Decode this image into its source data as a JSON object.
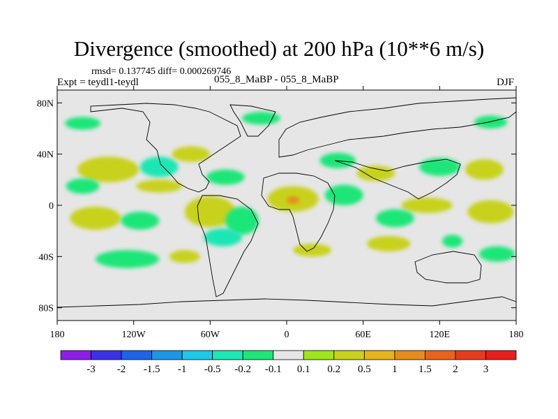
{
  "title": "Divergence (smoothed) at 200 hPa (10**6 m/s)",
  "stats": "rmsd= 0.137745 diff= 0.000269746",
  "experiment": "Expt = teydl1-teydl",
  "case": "055_8_MaBP - 055_8_MaBP",
  "season": "DJF",
  "chart_data": {
    "type": "heatmap",
    "variable": "Divergence (smoothed) at 200 hPa",
    "units": "10**6 m/s",
    "x_axis": {
      "range": [
        -180,
        180
      ],
      "ticks": [
        -180,
        -120,
        -60,
        0,
        60,
        120,
        180
      ],
      "tick_labels": [
        "180",
        "120W",
        "60W",
        "0",
        "60E",
        "120E",
        "180"
      ]
    },
    "y_axis": {
      "range": [
        -90,
        90
      ],
      "ticks": [
        80,
        40,
        0,
        -40,
        -80
      ],
      "tick_labels": [
        "80N",
        "40N",
        "0",
        "40S",
        "80S"
      ]
    },
    "colorbar": {
      "labels": [
        "-3",
        "-2",
        "-1.5",
        "-1",
        "-0.5",
        "-0.2",
        "-0.1",
        "0.1",
        "0.2",
        "0.5",
        "1",
        "1.5",
        "2",
        "3"
      ],
      "colors": [
        "#8c1ee6",
        "#3a32e6",
        "#1e64e6",
        "#1e96e6",
        "#1ec8e6",
        "#1ee6b4",
        "#1ee678",
        "#e6e6e6",
        "#a0e61e",
        "#c8d21e",
        "#e6b41e",
        "#e68c1e",
        "#e6641e",
        "#e63c1e",
        "#e61e1e"
      ]
    },
    "regions": [
      {
        "lon": -160,
        "lat": 64,
        "w": 28,
        "h": 10,
        "level": "-0.1"
      },
      {
        "lon": -140,
        "lat": 28,
        "w": 48,
        "h": 20,
        "level": "0.2"
      },
      {
        "lon": -100,
        "lat": 30,
        "w": 30,
        "h": 16,
        "level": "-0.2"
      },
      {
        "lon": -75,
        "lat": 40,
        "w": 30,
        "h": 12,
        "level": "0.2"
      },
      {
        "lon": -48,
        "lat": 22,
        "w": 30,
        "h": 12,
        "level": "-0.1"
      },
      {
        "lon": -20,
        "lat": 68,
        "w": 30,
        "h": 10,
        "level": "-0.1"
      },
      {
        "lon": -160,
        "lat": 15,
        "w": 26,
        "h": 12,
        "level": "-0.1"
      },
      {
        "lon": -100,
        "lat": 15,
        "w": 36,
        "h": 10,
        "level": "0.2"
      },
      {
        "lon": -150,
        "lat": -10,
        "w": 40,
        "h": 18,
        "level": "0.2"
      },
      {
        "lon": -115,
        "lat": -12,
        "w": 30,
        "h": 14,
        "level": "-0.1"
      },
      {
        "lon": -60,
        "lat": -5,
        "w": 40,
        "h": 24,
        "level": "0.2"
      },
      {
        "lon": -35,
        "lat": -12,
        "w": 26,
        "h": 22,
        "level": "-0.1"
      },
      {
        "lon": -50,
        "lat": -25,
        "w": 30,
        "h": 14,
        "level": "-0.2"
      },
      {
        "lon": -125,
        "lat": -42,
        "w": 50,
        "h": 14,
        "level": "-0.1"
      },
      {
        "lon": 5,
        "lat": 5,
        "w": 40,
        "h": 20,
        "level": "0.2"
      },
      {
        "lon": 5,
        "lat": 4,
        "w": 10,
        "h": 6,
        "level": "1"
      },
      {
        "lon": 45,
        "lat": 8,
        "w": 30,
        "h": 16,
        "level": "-0.1"
      },
      {
        "lon": 40,
        "lat": 35,
        "w": 28,
        "h": 12,
        "level": "-0.1"
      },
      {
        "lon": 70,
        "lat": 25,
        "w": 30,
        "h": 12,
        "level": "0.2"
      },
      {
        "lon": 120,
        "lat": 30,
        "w": 32,
        "h": 14,
        "level": "-0.1"
      },
      {
        "lon": 155,
        "lat": 28,
        "w": 30,
        "h": 16,
        "level": "0.2"
      },
      {
        "lon": 110,
        "lat": 0,
        "w": 40,
        "h": 12,
        "level": "0.2"
      },
      {
        "lon": 160,
        "lat": -5,
        "w": 36,
        "h": 18,
        "level": "0.2"
      },
      {
        "lon": 85,
        "lat": -10,
        "w": 30,
        "h": 14,
        "level": "-0.1"
      },
      {
        "lon": 20,
        "lat": -35,
        "w": 30,
        "h": 10,
        "level": "0.2"
      },
      {
        "lon": 80,
        "lat": -30,
        "w": 34,
        "h": 12,
        "level": "0.2"
      },
      {
        "lon": 130,
        "lat": -28,
        "w": 16,
        "h": 10,
        "level": "-0.1"
      },
      {
        "lon": 165,
        "lat": -38,
        "w": 28,
        "h": 12,
        "level": "-0.1"
      },
      {
        "lon": 160,
        "lat": 65,
        "w": 26,
        "h": 10,
        "level": "-0.1"
      },
      {
        "lon": -80,
        "lat": -40,
        "w": 24,
        "h": 10,
        "level": "0.2"
      }
    ]
  }
}
